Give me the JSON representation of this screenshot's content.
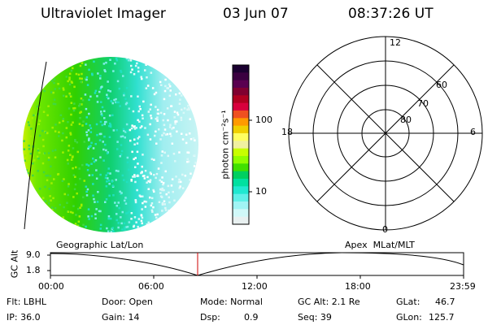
{
  "header": {
    "title": "Ultraviolet Imager",
    "date": "03 Jun 07",
    "time": "08:37:26 UT"
  },
  "colorbar": {
    "unit_label": "photon cm⁻²s⁻¹",
    "ticks": [
      "100",
      "10"
    ],
    "colors": [
      "#1a0030",
      "#3a0040",
      "#5a0050",
      "#800030",
      "#b00020",
      "#d8003c",
      "#f05020",
      "#ff9a00",
      "#f0d000",
      "#ffff60",
      "#f0f0a0",
      "#c8ff00",
      "#90ff00",
      "#40e000",
      "#00d060",
      "#00e0a0",
      "#20e8d0",
      "#60f0e8",
      "#a0f4f4",
      "#d0f8f8",
      "#e8f0f0"
    ]
  },
  "polar": {
    "labels_clock": [
      "12",
      "6",
      "0",
      "18"
    ],
    "labels_lat": [
      "60",
      "70",
      "80"
    ]
  },
  "timeline": {
    "left_label": "Geographic Lat/Lon",
    "right_label": "Apex  MLat/MLT",
    "axis_title": "GC Alt",
    "y_ticks": [
      "9.0",
      "1.8"
    ],
    "x_ticks": [
      "00:00",
      "06:00",
      "12:00",
      "18:00",
      "23:59"
    ],
    "current_marker_color": "#cc0000"
  },
  "info": {
    "flt": "Flt: LBHL",
    "ip": "IP: 36.0",
    "door": "Door: Open",
    "gain": "Gain: 14",
    "mode": "Mode: Normal",
    "dsp": "Dsp:",
    "dsp_val": "0.9",
    "gcalt": "GC Alt: 2.1 Re",
    "seq": "Seq: 39",
    "glat": "GLat:",
    "glat_val": "46.7",
    "glon": "GLon:",
    "glon_val": "125.7"
  }
}
